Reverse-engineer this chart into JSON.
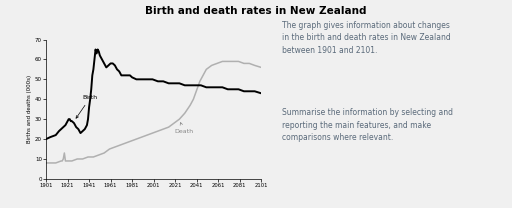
{
  "title": "Birth and death rates in New Zealand",
  "ylabel": "Births and deaths (000s)",
  "xlim": [
    1901,
    2101
  ],
  "ylim": [
    0,
    70
  ],
  "yticks": [
    0,
    10,
    20,
    30,
    40,
    50,
    60,
    70
  ],
  "xticks": [
    1901,
    1921,
    1941,
    1961,
    1981,
    2001,
    2021,
    2041,
    2061,
    2081,
    2101
  ],
  "bg_color": "#f0f0f0",
  "text_color": "#5a6a7a",
  "annotation_text1": "The graph gives information about changes\nin the birth and death rates in New Zealand\nbetween 1901 and 2101.",
  "annotation_text2": "Summarise the information by selecting and\nreporting the main features, and make\ncomparisons where relevant.",
  "birth_label": "Birth",
  "death_label": "Death",
  "birth_years": [
    1901,
    1905,
    1910,
    1913,
    1915,
    1917,
    1919,
    1920,
    1921,
    1922,
    1923,
    1924,
    1925,
    1927,
    1929,
    1931,
    1932,
    1933,
    1935,
    1937,
    1939,
    1940,
    1941,
    1942,
    1943,
    1944,
    1945,
    1946,
    1947,
    1948,
    1949,
    1950,
    1951,
    1953,
    1955,
    1957,
    1959,
    1961,
    1963,
    1965,
    1967,
    1969,
    1971,
    1973,
    1975,
    1977,
    1979,
    1981,
    1985,
    1990,
    1995,
    2000,
    2005,
    2010,
    2015,
    2020,
    2025,
    2030,
    2035,
    2040,
    2045,
    2050,
    2055,
    2060,
    2065,
    2070,
    2075,
    2080,
    2085,
    2090,
    2095,
    2101
  ],
  "birth_values": [
    20,
    21,
    22,
    24,
    25,
    26,
    27,
    28,
    29,
    30,
    30,
    29,
    29,
    28,
    26,
    25,
    24,
    23,
    24,
    25,
    27,
    30,
    36,
    40,
    45,
    52,
    55,
    60,
    65,
    63,
    65,
    64,
    62,
    60,
    58,
    56,
    57,
    58,
    58,
    57,
    55,
    54,
    52,
    52,
    52,
    52,
    52,
    51,
    50,
    50,
    50,
    50,
    49,
    49,
    48,
    48,
    48,
    47,
    47,
    47,
    47,
    46,
    46,
    46,
    46,
    45,
    45,
    45,
    44,
    44,
    44,
    43
  ],
  "death_years": [
    1901,
    1905,
    1910,
    1915,
    1916,
    1917,
    1918,
    1919,
    1920,
    1925,
    1930,
    1935,
    1940,
    1945,
    1950,
    1955,
    1960,
    1965,
    1970,
    1975,
    1980,
    1985,
    1990,
    1995,
    2000,
    2005,
    2010,
    2015,
    2020,
    2025,
    2030,
    2035,
    2038,
    2040,
    2042,
    2044,
    2046,
    2048,
    2050,
    2055,
    2060,
    2065,
    2070,
    2075,
    2080,
    2085,
    2090,
    2095,
    2101
  ],
  "death_values": [
    8,
    8,
    8,
    9,
    9,
    10,
    13,
    9,
    9,
    9,
    10,
    10,
    11,
    11,
    12,
    13,
    15,
    16,
    17,
    18,
    19,
    20,
    21,
    22,
    23,
    24,
    25,
    26,
    28,
    30,
    33,
    37,
    40,
    43,
    46,
    49,
    51,
    53,
    55,
    57,
    58,
    59,
    59,
    59,
    59,
    58,
    58,
    57,
    56
  ]
}
